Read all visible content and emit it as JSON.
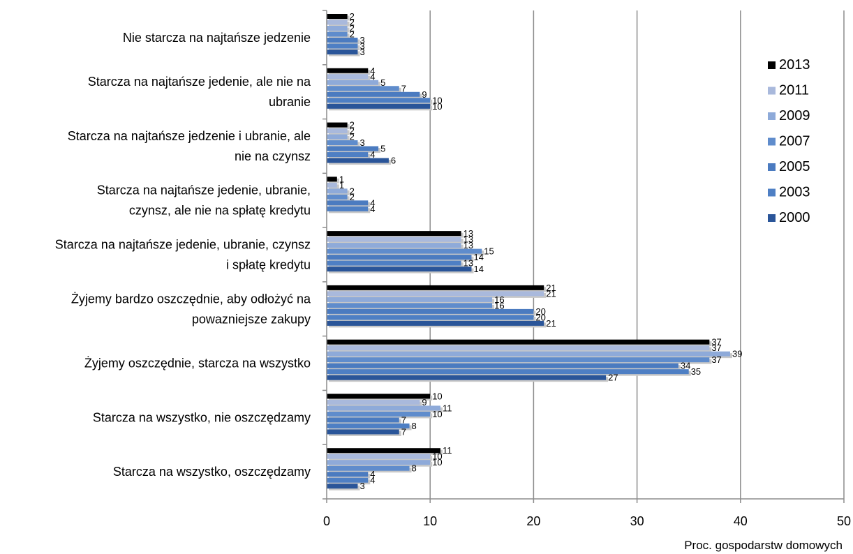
{
  "chart_data": {
    "type": "bar",
    "orientation": "horizontal",
    "title": "",
    "xlabel": "Proc. gospodarstw domowych",
    "ylabel": "",
    "xlim": [
      0,
      50
    ],
    "x_ticks": [
      0,
      10,
      20,
      30,
      40,
      50
    ],
    "grid": "vertical",
    "legend_position": "right",
    "categories": [
      "Nie starcza na najtańsze jedzenie",
      "Starcza na najtańsze jedenie, ale nie na ubranie",
      "Starcza na najtańsze jedzenie i ubranie, ale nie na czynsz",
      "Starcza na najtańsze jedenie, ubranie, czynsz, ale nie na spłatę kredytu",
      "Starcza na najtańsze jedenie, ubranie, czynsz i spłatę kredytu",
      "Żyjemy bardzo oszczędnie, aby odłożyć na powazniejsze zakupy",
      "Żyjemy oszczędnie, starcza na wszystko",
      "Starcza na wszystko, nie oszczędzamy",
      "Starcza na wszystko, oszczędzamy"
    ],
    "category_lines": [
      [
        "Nie starcza na najtańsze jedzenie"
      ],
      [
        "Starcza na najtańsze jedenie, ale nie na",
        "ubranie"
      ],
      [
        "Starcza na najtańsze jedzenie i ubranie, ale",
        "nie na czynsz"
      ],
      [
        "Starcza na najtańsze jedenie, ubranie,",
        "czynsz, ale nie na spłatę kredytu"
      ],
      [
        "Starcza na najtańsze jedenie, ubranie, czynsz",
        "i spłatę kredytu"
      ],
      [
        "Żyjemy bardzo oszczędnie, aby odłożyć na",
        "powazniejsze zakupy"
      ],
      [
        "Żyjemy oszczędnie, starcza na wszystko"
      ],
      [
        "Starcza na wszystko, nie oszczędzamy"
      ],
      [
        "Starcza na wszystko, oszczędzamy"
      ]
    ],
    "series": [
      {
        "name": "2013",
        "color": "#000000",
        "values": [
          2,
          4,
          2,
          1,
          13,
          21,
          37,
          10,
          11
        ]
      },
      {
        "name": "2011",
        "color": "#a9b9dc",
        "values": [
          2,
          4,
          2,
          1,
          13,
          21,
          37,
          9,
          10
        ]
      },
      {
        "name": "2009",
        "color": "#8eaad9",
        "values": [
          2,
          5,
          2,
          2,
          13,
          16,
          39,
          11,
          10
        ]
      },
      {
        "name": "2007",
        "color": "#5f8ccc",
        "values": [
          2,
          7,
          3,
          2,
          15,
          16,
          37,
          10,
          8
        ]
      },
      {
        "name": "2005",
        "color": "#4b7bc0",
        "values": [
          3,
          9,
          5,
          4,
          14,
          20,
          34,
          7,
          4
        ]
      },
      {
        "name": "2003",
        "color": "#4e7fc4",
        "values": [
          3,
          10,
          4,
          4,
          13,
          20,
          35,
          8,
          4
        ]
      },
      {
        "name": "2000",
        "color": "#2a5599",
        "values": [
          3,
          10,
          6,
          null,
          14,
          21,
          27,
          7,
          3
        ]
      }
    ]
  }
}
